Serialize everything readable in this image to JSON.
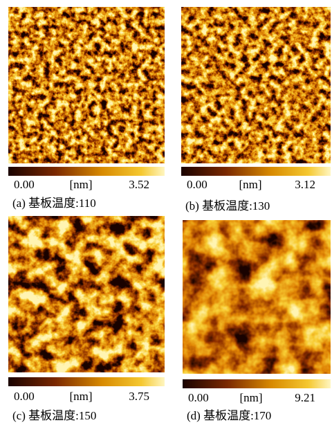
{
  "panels": [
    {
      "min": "0.00",
      "unit": "[nm]",
      "max": "3.52",
      "caption": "(a) 基板温度:110"
    },
    {
      "min": "0.00",
      "unit": "[nm]",
      "max": "3.12",
      "caption": "(b) 基板温度:130"
    },
    {
      "min": "0.00",
      "unit": "[nm]",
      "max": "3.75",
      "caption": "(c) 基板温度:150"
    },
    {
      "min": "0.00",
      "unit": "[nm]",
      "max": "9.21",
      "caption": "(d) 基板温度:170"
    }
  ]
}
